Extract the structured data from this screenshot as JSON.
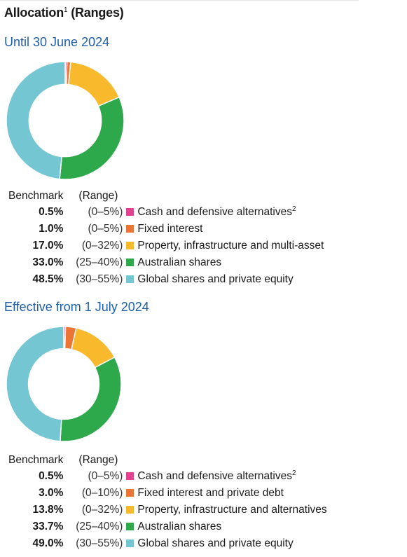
{
  "title": "Allocation",
  "title_sup": "1",
  "title_suffix": " (Ranges)",
  "chart_data": [
    {
      "type": "pie",
      "title": "Until 30 June 2024",
      "header_benchmark": "Benchmark",
      "header_range": "(Range)",
      "segments": [
        {
          "label": "Cash and defensive alternatives",
          "sup": "2",
          "benchmark": "0.5%",
          "value": 0.5,
          "range": "(0–5%)",
          "color": "#e3438e"
        },
        {
          "label": "Fixed interest",
          "sup": "",
          "benchmark": "1.0%",
          "value": 1.0,
          "range": "(0–5%)",
          "color": "#ec7536"
        },
        {
          "label": "Property, infrastructure and multi-asset",
          "sup": "",
          "benchmark": "17.0%",
          "value": 17.0,
          "range": "(0–32%)",
          "color": "#f9b92d"
        },
        {
          "label": "Australian shares",
          "sup": "",
          "benchmark": "33.0%",
          "value": 33.0,
          "range": "(25–40%)",
          "color": "#2da84a"
        },
        {
          "label": "Global shares and private equity",
          "sup": "",
          "benchmark": "48.5%",
          "value": 48.5,
          "range": "(30–55%)",
          "color": "#74c6d2"
        }
      ]
    },
    {
      "type": "pie",
      "title": "Effective from 1 July 2024",
      "header_benchmark": "Benchmark",
      "header_range": "(Range)",
      "segments": [
        {
          "label": "Cash and defensive alternatives",
          "sup": "2",
          "benchmark": "0.5%",
          "value": 0.5,
          "range": "(0–5%)",
          "color": "#e3438e"
        },
        {
          "label": "Fixed interest and private debt",
          "sup": "",
          "benchmark": "3.0%",
          "value": 3.0,
          "range": "(0–10%)",
          "color": "#ec7536"
        },
        {
          "label": "Property, infrastructure and alternatives",
          "sup": "",
          "benchmark": "13.8%",
          "value": 13.8,
          "range": "(0–32%)",
          "color": "#f9b92d"
        },
        {
          "label": "Australian shares",
          "sup": "",
          "benchmark": "33.7%",
          "value": 33.7,
          "range": "(25–40%)",
          "color": "#2da84a"
        },
        {
          "label": "Global shares and private equity",
          "sup": "",
          "benchmark": "49.0%",
          "value": 49.0,
          "range": "(30–55%)",
          "color": "#74c6d2"
        }
      ]
    }
  ]
}
